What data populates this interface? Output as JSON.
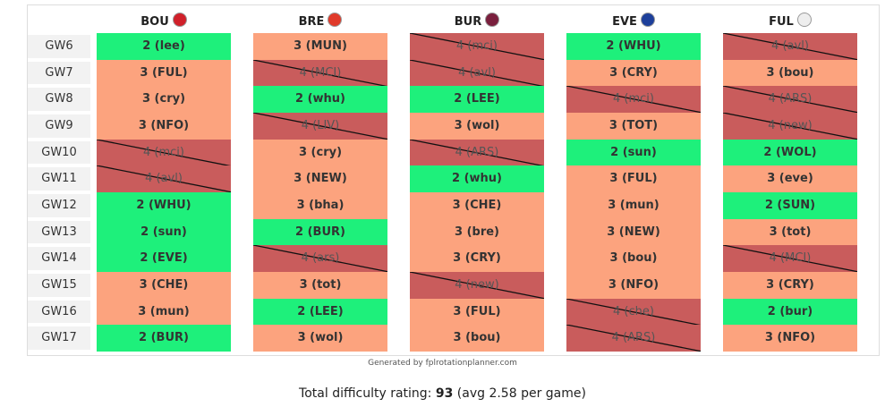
{
  "teams": [
    "BOU",
    "BRE",
    "BUR",
    "EVE",
    "FUL"
  ],
  "rows": [
    {
      "gw": "GW6",
      "cells": [
        "2 (lee)",
        "3 (MUN)",
        "4 (mci)",
        "2 (WHU)",
        "4 (avl)"
      ]
    },
    {
      "gw": "GW7",
      "cells": [
        "3 (FUL)",
        "4 (MCI)",
        "4 (avl)",
        "3 (CRY)",
        "3 (bou)"
      ]
    },
    {
      "gw": "GW8",
      "cells": [
        "3 (cry)",
        "2 (whu)",
        "2 (LEE)",
        "4 (mci)",
        "4 (ARS)"
      ]
    },
    {
      "gw": "GW9",
      "cells": [
        "3 (NFO)",
        "4 (LIV)",
        "3 (wol)",
        "3 (TOT)",
        "4 (new)"
      ]
    },
    {
      "gw": "GW10",
      "cells": [
        "4 (mci)",
        "3 (cry)",
        "4 (ARS)",
        "2 (sun)",
        "2 (WOL)"
      ]
    },
    {
      "gw": "GW11",
      "cells": [
        "4 (avl)",
        "3 (NEW)",
        "2 (whu)",
        "3 (FUL)",
        "3 (eve)"
      ]
    },
    {
      "gw": "GW12",
      "cells": [
        "2 (WHU)",
        "3 (bha)",
        "3 (CHE)",
        "3 (mun)",
        "2 (SUN)"
      ]
    },
    {
      "gw": "GW13",
      "cells": [
        "2 (sun)",
        "2 (BUR)",
        "3 (bre)",
        "3 (NEW)",
        "3 (tot)"
      ]
    },
    {
      "gw": "GW14",
      "cells": [
        "2 (EVE)",
        "4 (ars)",
        "3 (CRY)",
        "3 (bou)",
        "4 (MCI)"
      ]
    },
    {
      "gw": "GW15",
      "cells": [
        "3 (CHE)",
        "3 (tot)",
        "4 (new)",
        "3 (NFO)",
        "3 (CRY)"
      ]
    },
    {
      "gw": "GW16",
      "cells": [
        "3 (mun)",
        "2 (LEE)",
        "3 (FUL)",
        "4 (che)",
        "2 (bur)"
      ]
    },
    {
      "gw": "GW17",
      "cells": [
        "2 (BUR)",
        "3 (wol)",
        "3 (bou)",
        "4 (ARS)",
        "3 (NFO)"
      ]
    }
  ],
  "credit": "Generated by fplrotationplanner.com",
  "footer": {
    "label": "Total difficulty rating:",
    "total": 93,
    "avg_text": "(avg 2.58 per game)"
  }
}
